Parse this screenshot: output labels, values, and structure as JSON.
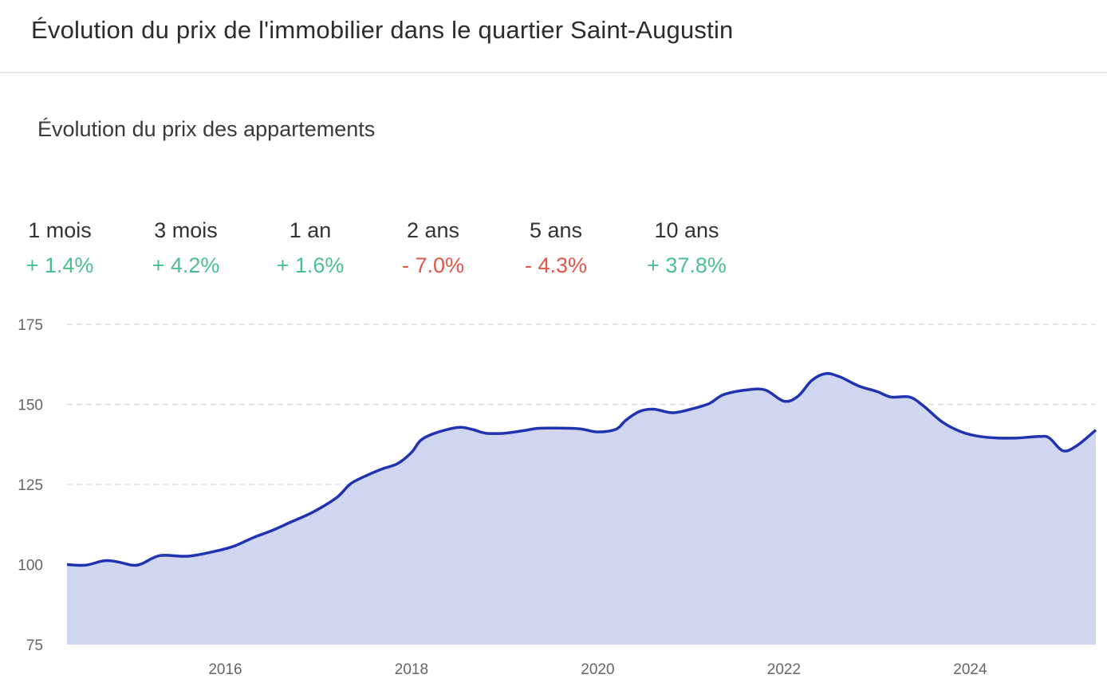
{
  "header": {
    "title": "Évolution du prix de l'immobilier dans le quartier Saint-Augustin"
  },
  "chart_title": "Évolution du prix des appartements",
  "periods": [
    {
      "label": "1 mois",
      "value": "+ 1.4%",
      "trend": "positive"
    },
    {
      "label": "3 mois",
      "value": "+ 4.2%",
      "trend": "positive"
    },
    {
      "label": "1 an",
      "value": "+ 1.6%",
      "trend": "positive"
    },
    {
      "label": "2 ans",
      "value": "- 7.0%",
      "trend": "negative"
    },
    {
      "label": "5 ans",
      "value": "- 4.3%",
      "trend": "negative"
    },
    {
      "label": "10 ans",
      "value": "+ 37.8%",
      "trend": "positive"
    }
  ],
  "colors": {
    "positive": "#4cbf8f",
    "negative": "#e0574a",
    "line": "#1f33b0",
    "area": "#d0d5f0",
    "grid": "#dddddd"
  },
  "chart_data": {
    "type": "area",
    "title": "Évolution du prix des appartements",
    "xlabel": "",
    "ylabel": "",
    "xlim": [
      2014.3,
      2025.35
    ],
    "ylim": [
      75,
      175
    ],
    "y_ticks": [
      175,
      150,
      125,
      100,
      75
    ],
    "x_ticks": [
      2016,
      2018,
      2020,
      2022,
      2024
    ],
    "grid": "horizontal-dashed",
    "series": [
      {
        "name": "",
        "points": [
          [
            2014.3,
            100
          ],
          [
            2014.5,
            99.8
          ],
          [
            2014.7,
            101.2
          ],
          [
            2014.85,
            100.8
          ],
          [
            2015.0,
            99.8
          ],
          [
            2015.1,
            100.2
          ],
          [
            2015.3,
            102.8
          ],
          [
            2015.6,
            102.6
          ],
          [
            2015.9,
            104.2
          ],
          [
            2016.1,
            105.8
          ],
          [
            2016.3,
            108.4
          ],
          [
            2016.5,
            110.6
          ],
          [
            2016.7,
            113.2
          ],
          [
            2016.95,
            116.5
          ],
          [
            2017.2,
            121
          ],
          [
            2017.35,
            125.3
          ],
          [
            2017.55,
            128.2
          ],
          [
            2017.7,
            130
          ],
          [
            2017.85,
            131.5
          ],
          [
            2018.0,
            135
          ],
          [
            2018.1,
            138.8
          ],
          [
            2018.25,
            141
          ],
          [
            2018.5,
            142.8
          ],
          [
            2018.65,
            142.2
          ],
          [
            2018.8,
            141
          ],
          [
            2019.0,
            141
          ],
          [
            2019.2,
            141.8
          ],
          [
            2019.35,
            142.5
          ],
          [
            2019.5,
            142.6
          ],
          [
            2019.8,
            142.4
          ],
          [
            2020.0,
            141.4
          ],
          [
            2020.2,
            142.3
          ],
          [
            2020.3,
            145
          ],
          [
            2020.45,
            147.8
          ],
          [
            2020.6,
            148.5
          ],
          [
            2020.8,
            147.4
          ],
          [
            2021.0,
            148.5
          ],
          [
            2021.2,
            150.3
          ],
          [
            2021.35,
            153
          ],
          [
            2021.6,
            154.5
          ],
          [
            2021.8,
            154.5
          ],
          [
            2022.0,
            151
          ],
          [
            2022.15,
            152.5
          ],
          [
            2022.3,
            157.5
          ],
          [
            2022.45,
            159.6
          ],
          [
            2022.6,
            158.6
          ],
          [
            2022.8,
            155.8
          ],
          [
            2023.0,
            154
          ],
          [
            2023.15,
            152.3
          ],
          [
            2023.35,
            152.3
          ],
          [
            2023.5,
            149.5
          ],
          [
            2023.7,
            144.5
          ],
          [
            2023.9,
            141.5
          ],
          [
            2024.1,
            140
          ],
          [
            2024.3,
            139.5
          ],
          [
            2024.5,
            139.5
          ],
          [
            2024.75,
            140
          ],
          [
            2024.85,
            139.5
          ],
          [
            2025.0,
            135.5
          ],
          [
            2025.15,
            137.2
          ],
          [
            2025.35,
            142
          ]
        ]
      }
    ]
  }
}
